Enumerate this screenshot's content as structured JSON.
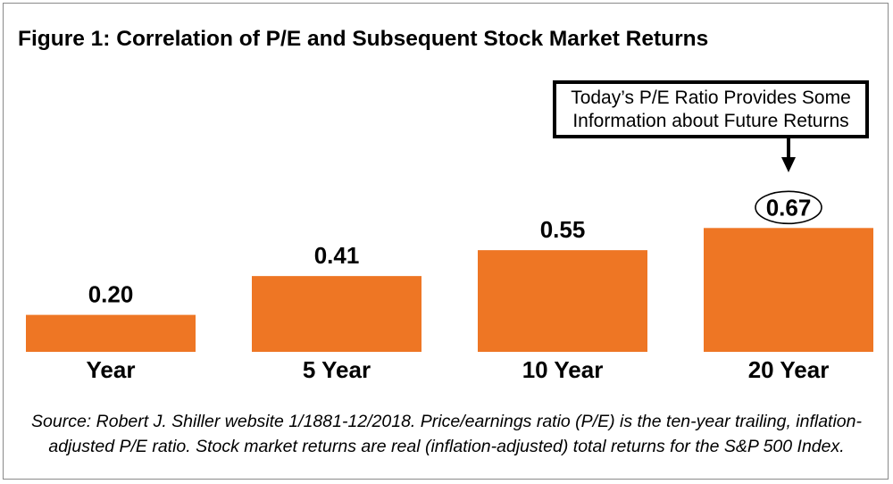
{
  "chart_data": {
    "type": "bar",
    "title": "Figure 1: Correlation of P/E and Subsequent Stock Market Returns",
    "categories": [
      "Year",
      "5 Year",
      "10 Year",
      "20 Year"
    ],
    "values": [
      0.2,
      0.41,
      0.55,
      0.67
    ],
    "data_labels": [
      "0.20",
      "0.41",
      "0.55",
      "0.67"
    ],
    "highlighted_category": "20 Year",
    "xlabel": "",
    "ylabel": "",
    "ylim": [
      0,
      0.75
    ],
    "grid": false,
    "legend": "none",
    "bar_color": "#ee7624",
    "annotation": {
      "lines": [
        "Today’s P/E Ratio Provides Some",
        "Information about Future Returns"
      ],
      "target": "20 Year"
    },
    "source": [
      "Source: Robert J. Shiller website 1/1881-12/2018. Price/earnings ratio (P/E) is the ten-year trailing, inflation-",
      "adjusted P/E ratio. Stock market returns are real (inflation-adjusted) total returns for the S&P 500 Index."
    ]
  }
}
